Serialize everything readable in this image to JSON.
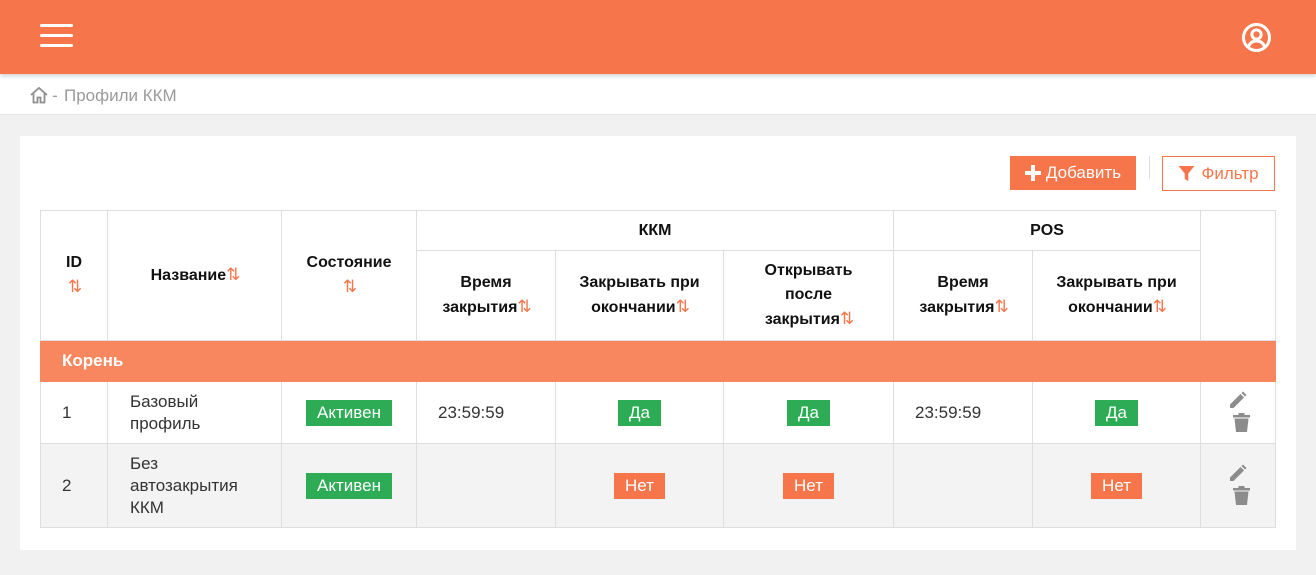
{
  "colors": {
    "primary": "#f7754a",
    "group_row": "#f8875f",
    "success": "#2dab55"
  },
  "header": {
    "menu_icon": "hamburger-menu-icon",
    "user_icon": "user-circle-icon"
  },
  "breadcrumb": {
    "home_icon": "home-icon",
    "separator": "-",
    "current": "Профили ККМ"
  },
  "toolbar": {
    "add_label": "Добавить",
    "add_icon": "plus-icon",
    "filter_label": "Фильтр",
    "filter_icon": "filter-icon"
  },
  "table": {
    "headers": {
      "id": "ID",
      "name": "Название",
      "state": "Состояние",
      "kkm_group": "ККМ",
      "pos_group": "POS",
      "kkm_close_time": "Время закрытия",
      "kkm_close_on_end": "Закрывать при окончании",
      "kkm_open_after_close": "Открывать после закрытия",
      "pos_close_time": "Время закрытия",
      "pos_close_on_end": "Закрывать при окончании"
    },
    "sort_icon": "⇅",
    "group": "Корень",
    "rows": [
      {
        "id": "1",
        "name": "Базовый профиль",
        "state": "Активен",
        "kkm_close_time": "23:59:59",
        "kkm_close_on_end": "Да",
        "kkm_open_after_close": "Да",
        "pos_close_time": "23:59:59",
        "pos_close_on_end": "Да"
      },
      {
        "id": "2",
        "name": "Без автозакрытия ККМ",
        "state": "Активен",
        "kkm_close_time": "",
        "kkm_close_on_end": "Нет",
        "kkm_open_after_close": "Нет",
        "pos_close_time": "",
        "pos_close_on_end": "Нет"
      }
    ]
  }
}
